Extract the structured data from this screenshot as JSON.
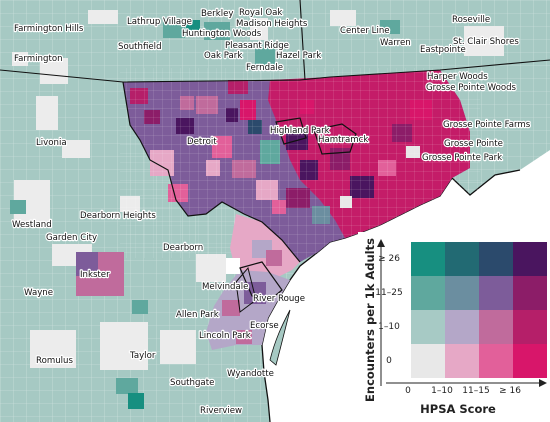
{
  "places": [
    {
      "id": "farmington-hills",
      "name": "Farmington Hills"
    },
    {
      "id": "farmington",
      "name": "Farmington"
    },
    {
      "id": "southfield",
      "name": "Southfield"
    },
    {
      "id": "lathrup-village",
      "name": "Lathrup Village"
    },
    {
      "id": "berkley",
      "name": "Berkley"
    },
    {
      "id": "royal-oak",
      "name": "Royal Oak"
    },
    {
      "id": "madison-heights",
      "name": "Madison Heights"
    },
    {
      "id": "huntington-woods",
      "name": "Huntington Woods"
    },
    {
      "id": "pleasant-ridge",
      "name": "Pleasant Ridge"
    },
    {
      "id": "oak-park",
      "name": "Oak Park"
    },
    {
      "id": "hazel-park",
      "name": "Hazel Park"
    },
    {
      "id": "ferndale",
      "name": "Ferndale"
    },
    {
      "id": "roseville",
      "name": "Roseville"
    },
    {
      "id": "center-line",
      "name": "Center Line"
    },
    {
      "id": "warren",
      "name": "Warren"
    },
    {
      "id": "eastpointe",
      "name": "Eastpointe"
    },
    {
      "id": "st-clair-shores",
      "name": "St. Clair Shores"
    },
    {
      "id": "harper-woods",
      "name": "Harper Woods"
    },
    {
      "id": "grosse-pointe-woods",
      "name": "Grosse Pointe Woods"
    },
    {
      "id": "grosse-pointe-farms",
      "name": "Grosse Pointe Farms"
    },
    {
      "id": "grosse-pointe",
      "name": "Grosse Pointe"
    },
    {
      "id": "grosse-pointe-park",
      "name": "Grosse Pointe Park"
    },
    {
      "id": "highland-park",
      "name": "Highland Park"
    },
    {
      "id": "hamtramck",
      "name": "Hamtramck"
    },
    {
      "id": "detroit",
      "name": "Detroit"
    },
    {
      "id": "livonia",
      "name": "Livonia"
    },
    {
      "id": "dearborn-heights",
      "name": "Dearborn Heights"
    },
    {
      "id": "westland",
      "name": "Westland"
    },
    {
      "id": "garden-city",
      "name": "Garden City"
    },
    {
      "id": "dearborn",
      "name": "Dearborn"
    },
    {
      "id": "inkster",
      "name": "Inkster"
    },
    {
      "id": "wayne",
      "name": "Wayne"
    },
    {
      "id": "melvindale",
      "name": "Melvindale"
    },
    {
      "id": "river-rouge",
      "name": "River Rouge"
    },
    {
      "id": "allen-park",
      "name": "Allen Park"
    },
    {
      "id": "ecorse",
      "name": "Ecorse"
    },
    {
      "id": "lincoln-park",
      "name": "Lincoln Park"
    },
    {
      "id": "romulus",
      "name": "Romulus"
    },
    {
      "id": "taylor",
      "name": "Taylor"
    },
    {
      "id": "wyandotte",
      "name": "Wyandotte"
    },
    {
      "id": "southgate",
      "name": "Southgate"
    },
    {
      "id": "riverview",
      "name": "Riverview"
    }
  ],
  "legend": {
    "y_title": "Encounters per 1k Adults",
    "x_title": "HPSA Score",
    "y_categories": [
      "0",
      "1–10",
      "11–25",
      "≥ 26"
    ],
    "x_categories": [
      "0",
      "1–10",
      "11–15",
      "≥ 16"
    ],
    "colors": [
      [
        "#e8e8e8",
        "#e6a8c6",
        "#e2609a",
        "#d8166a"
      ],
      [
        "#a7cac5",
        "#b4a7c8",
        "#c06b9c",
        "#b51f69"
      ],
      [
        "#5fa89e",
        "#6b8ea0",
        "#7d5c9a",
        "#8c1d68"
      ],
      [
        "#178f80",
        "#226a73",
        "#2b4a6c",
        "#4a155f"
      ]
    ]
  }
}
